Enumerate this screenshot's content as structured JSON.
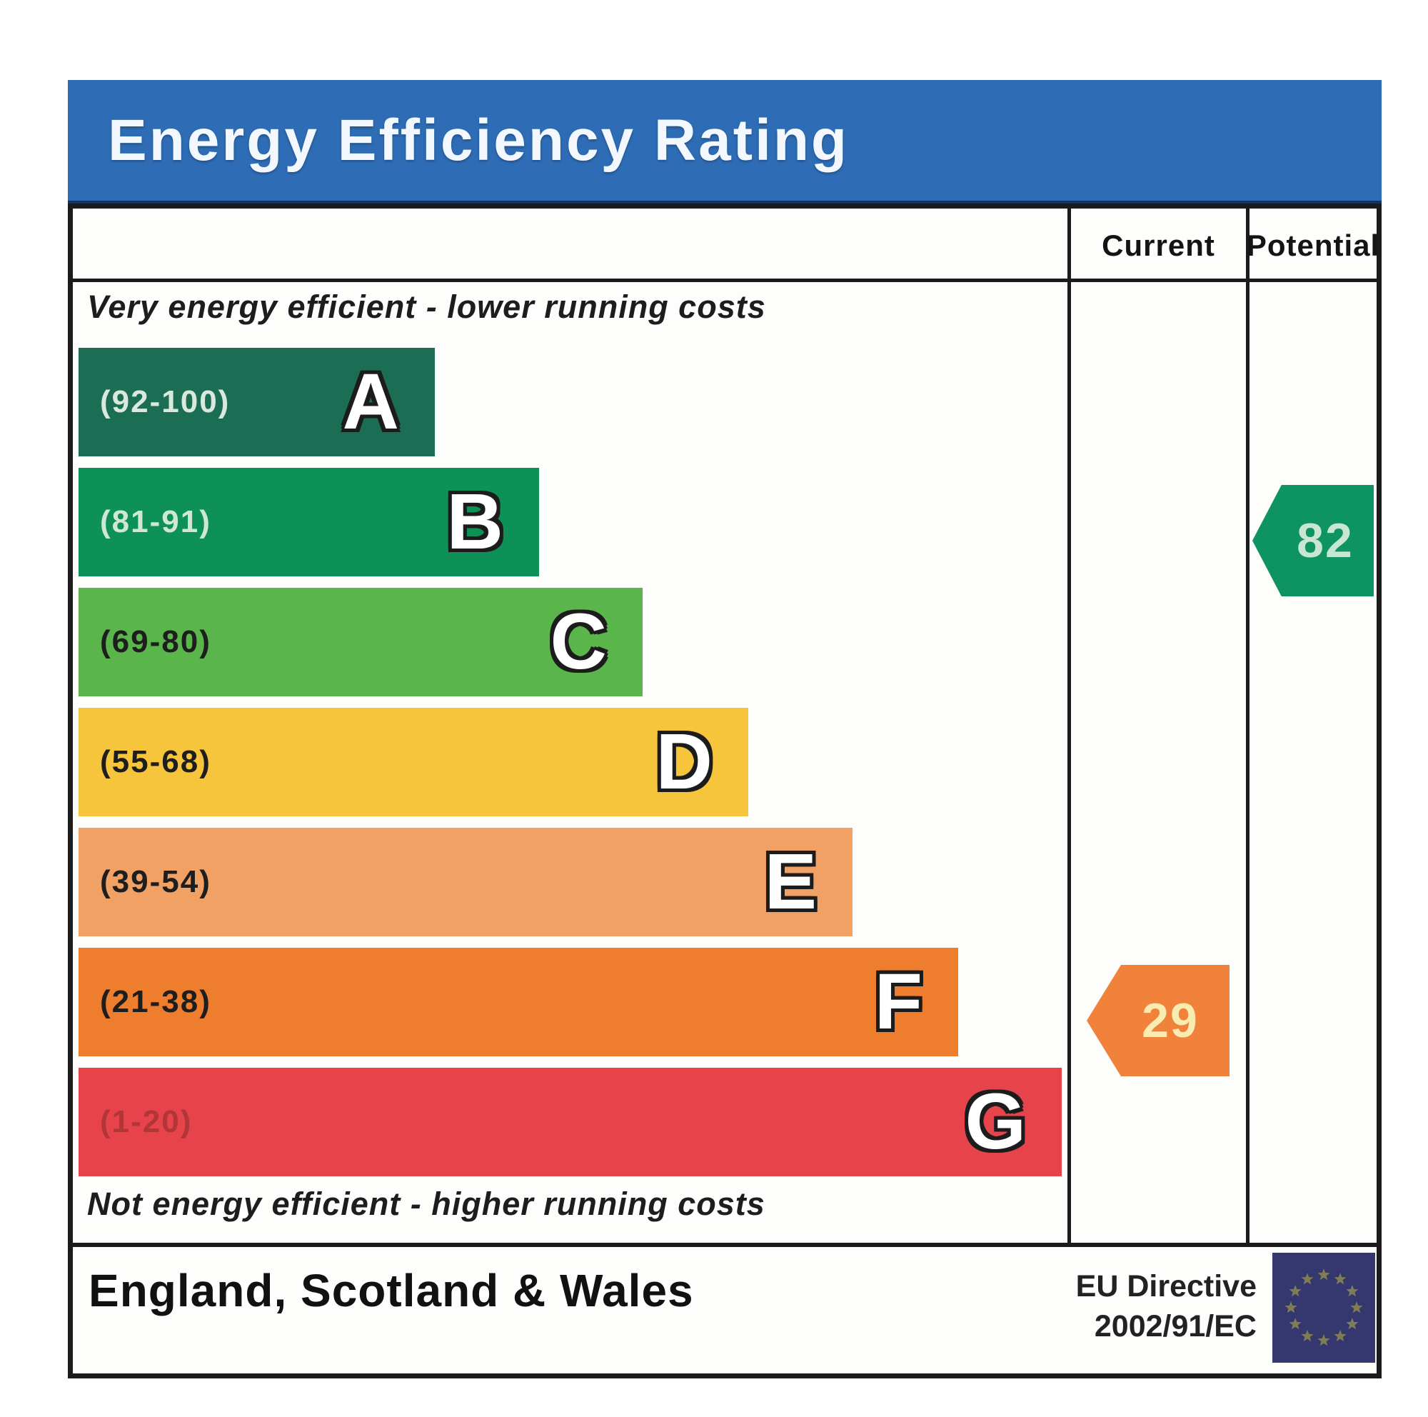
{
  "title": "Energy Efficiency Rating",
  "columns": {
    "current": "Current",
    "potential": "Potential"
  },
  "captions": {
    "top": "Very energy efficient - lower running costs",
    "bottom": "Not energy efficient - higher running costs"
  },
  "bands": [
    {
      "letter": "A",
      "range": "(92-100)",
      "color": "#1b6e54",
      "range_color": "#d9e9de",
      "width_pct": 35.9
    },
    {
      "letter": "B",
      "range": "(81-91)",
      "color": "#0e9156",
      "range_color": "#cfe7d6",
      "width_pct": 46.4
    },
    {
      "letter": "C",
      "range": "(69-80)",
      "color": "#5ab54a",
      "range_color": "#1e1e1e",
      "width_pct": 56.8
    },
    {
      "letter": "D",
      "range": "(55-68)",
      "color": "#f7c53c",
      "range_color": "#1e1e1e",
      "width_pct": 67.5
    },
    {
      "letter": "E",
      "range": "(39-54)",
      "color": "#f2a165",
      "range_color": "#1e1e1e",
      "width_pct": 78.0
    },
    {
      "letter": "F",
      "range": "(21-38)",
      "color": "#ee7e2d",
      "range_color": "#1e1e1e",
      "width_pct": 88.6
    },
    {
      "letter": "G",
      "range": "(1-20)",
      "color": "#e7434b",
      "range_color": "#b23537",
      "width_pct": 99.1
    }
  ],
  "current": {
    "value": "29",
    "band": "F",
    "color": "#f0823c",
    "text_color": "#f8ecb0"
  },
  "potential": {
    "value": "82",
    "band": "B",
    "color": "#0e9463",
    "text_color": "#c9e6d2"
  },
  "footer": {
    "region": "England, Scotland & Wales",
    "directive_line1": "EU Directive",
    "directive_line2": "2002/91/EC"
  },
  "colors": {
    "title_bar": "#2e6db5",
    "title_text": "#f2f8fd",
    "border": "#1b1b1b",
    "flag_bg": "#35386e",
    "flag_stars": "#8c8852"
  },
  "chart_data": {
    "type": "bar",
    "title": "Energy Efficiency Rating",
    "categories": [
      "A",
      "B",
      "C",
      "D",
      "E",
      "F",
      "G"
    ],
    "band_ranges": [
      [
        92,
        100
      ],
      [
        81,
        91
      ],
      [
        69,
        80
      ],
      [
        55,
        68
      ],
      [
        39,
        54
      ],
      [
        21,
        38
      ],
      [
        1,
        20
      ]
    ],
    "bar_lengths_pct": [
      35.9,
      46.4,
      56.8,
      67.5,
      78.0,
      88.6,
      99.1
    ],
    "scale": [
      1,
      100
    ],
    "markers": [
      {
        "name": "Current",
        "value": 29,
        "band": "F"
      },
      {
        "name": "Potential",
        "value": 82,
        "band": "B"
      }
    ],
    "footnote": "EU Directive 2002/91/EC, England, Scotland & Wales"
  }
}
